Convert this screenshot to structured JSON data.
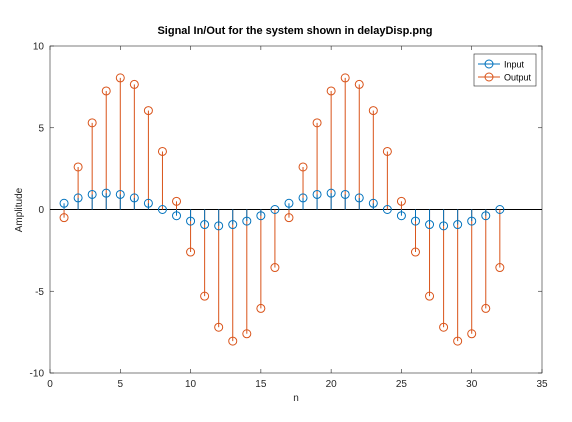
{
  "chart_data": {
    "type": "stem",
    "title": "Signal In/Out for the system shown in delayDisp.png",
    "xlabel": "n",
    "ylabel": "Amplitude",
    "xlim": [
      0,
      35
    ],
    "ylim": [
      -10,
      10
    ],
    "xticks": [
      0,
      5,
      10,
      15,
      20,
      25,
      30,
      35
    ],
    "yticks": [
      -10,
      -5,
      0,
      5,
      10
    ],
    "grid": false,
    "legend_position": "top-right",
    "zero_line": true,
    "x": [
      1,
      2,
      3,
      4,
      5,
      6,
      7,
      8,
      9,
      10,
      11,
      12,
      13,
      14,
      15,
      16,
      17,
      18,
      19,
      20,
      21,
      22,
      23,
      24,
      25,
      26,
      27,
      28,
      29,
      30,
      31,
      32
    ],
    "series": [
      {
        "name": "Input",
        "color": "#0072bd",
        "marker": "circle",
        "values": [
          0.38,
          0.71,
          0.92,
          1.0,
          0.92,
          0.71,
          0.38,
          0.0,
          -0.38,
          -0.71,
          -0.92,
          -1.0,
          -0.92,
          -0.71,
          -0.38,
          0.0,
          0.38,
          0.71,
          0.92,
          1.0,
          0.92,
          0.71,
          0.38,
          0.0,
          -0.38,
          -0.71,
          -0.92,
          -1.0,
          -0.92,
          -0.71,
          -0.38,
          0.0
        ]
      },
      {
        "name": "Output",
        "color": "#d95319",
        "marker": "circle",
        "values": [
          -0.5,
          2.6,
          5.3,
          7.25,
          8.05,
          7.65,
          6.05,
          3.55,
          0.5,
          -2.6,
          -5.3,
          -7.2,
          -8.05,
          -7.6,
          -6.05,
          -3.55,
          -0.5,
          2.6,
          5.3,
          7.25,
          8.05,
          7.65,
          6.05,
          3.55,
          0.5,
          -2.6,
          -5.3,
          -7.2,
          -8.05,
          -7.6,
          -6.05,
          -3.55
        ]
      }
    ]
  }
}
